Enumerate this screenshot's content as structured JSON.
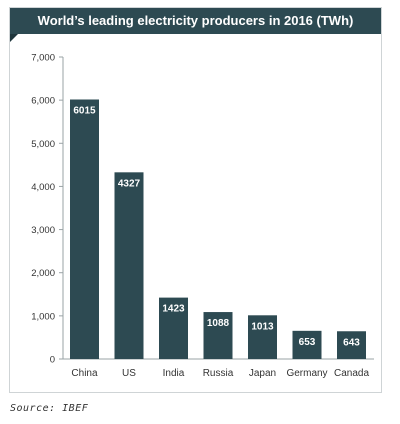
{
  "chart_data": {
    "type": "bar",
    "title": "World’s leading electricity producers in 2016 (TWh)",
    "categories": [
      "China",
      "US",
      "India",
      "Russia",
      "Japan",
      "Germany",
      "Canada"
    ],
    "values": [
      6015,
      4327,
      1423,
      1088,
      1013,
      653,
      643
    ],
    "data_labels": [
      "6015",
      "4327",
      "1423",
      "1088",
      "1013",
      "653",
      "643"
    ],
    "y_ticks": [
      0,
      1000,
      2000,
      3000,
      4000,
      5000,
      6000,
      7000
    ],
    "y_tick_labels": [
      "0",
      "1,000",
      "2,000",
      "3,000",
      "4,000",
      "5,000",
      "6,000",
      "7,000"
    ],
    "ylim": [
      0,
      7000
    ],
    "xlabel": "",
    "ylabel": "",
    "grid": false,
    "legend": "none"
  },
  "colors": {
    "header": "#2d4a52",
    "bar": "#2d4a52",
    "bar_label": "#ffffff",
    "axis": "#9aa3a6"
  },
  "source": "Source: IBEF"
}
